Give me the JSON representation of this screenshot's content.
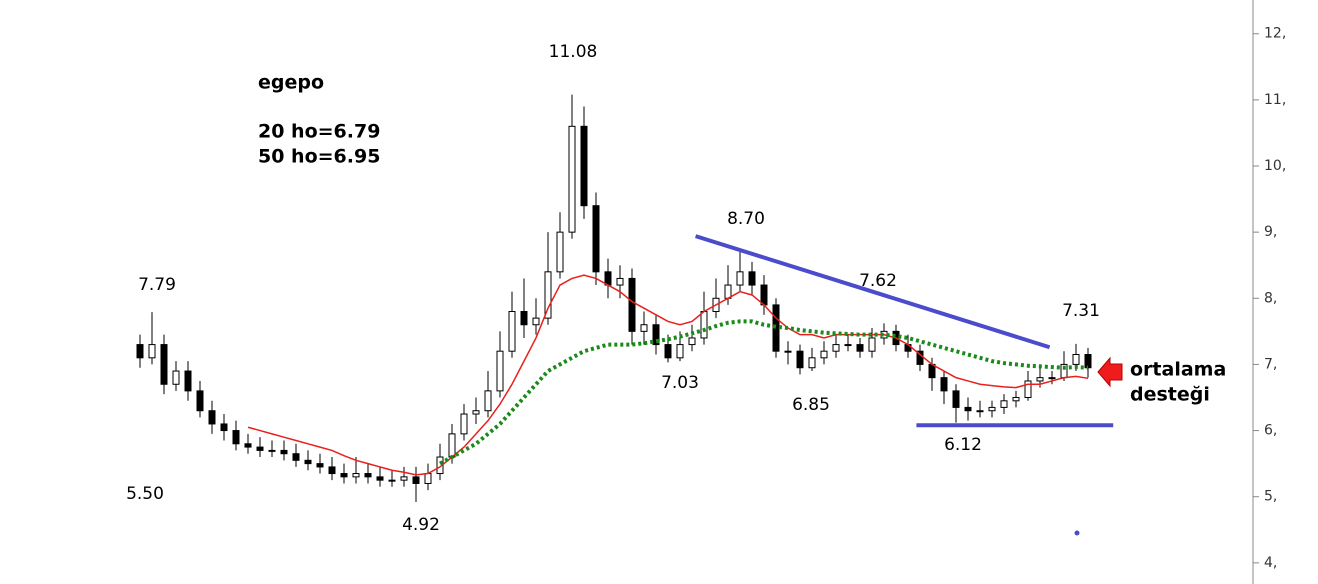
{
  "chart_data": {
    "type": "candlestick",
    "title": "egepo",
    "info_lines": [
      "20 ho=6.79",
      "50 ho=6.95"
    ],
    "annotations": [
      "7.79",
      "5.50",
      "11.08",
      "4.92",
      "8.70",
      "7.62",
      "7.03",
      "6.85",
      "6.12",
      "7.31"
    ],
    "callout": [
      "ortalama",
      "desteği"
    ],
    "categories": [
      null,
      null,
      null,
      null,
      null,
      null,
      null,
      null,
      null,
      null,
      null,
      null,
      null,
      null,
      null,
      null,
      null,
      null,
      null,
      null,
      null,
      null,
      null,
      null,
      null,
      null,
      null,
      null,
      null,
      null,
      null,
      null,
      null,
      null,
      null,
      null,
      null,
      null,
      null,
      null,
      null,
      null,
      null,
      null,
      null,
      null,
      null,
      null,
      null,
      null,
      null,
      null,
      null,
      null,
      null,
      null,
      null,
      null,
      null,
      null,
      null,
      null,
      null,
      null,
      null,
      null,
      null,
      null,
      null,
      null,
      null,
      null,
      null,
      null,
      null,
      null,
      null,
      null,
      null,
      null
    ],
    "open": [
      7.3,
      7.1,
      7.3,
      6.7,
      6.9,
      6.6,
      6.3,
      6.1,
      6.0,
      5.8,
      5.75,
      5.7,
      5.7,
      5.65,
      5.55,
      5.5,
      5.45,
      5.35,
      5.3,
      5.35,
      5.3,
      5.25,
      5.25,
      5.3,
      5.2,
      5.35,
      5.6,
      5.95,
      6.25,
      6.3,
      6.6,
      7.2,
      7.8,
      7.6,
      7.7,
      8.4,
      9.0,
      10.6,
      9.4,
      8.4,
      8.2,
      8.3,
      7.5,
      7.6,
      7.3,
      7.1,
      7.3,
      7.4,
      7.8,
      8.0,
      8.2,
      8.4,
      8.2,
      7.9,
      7.2,
      7.2,
      6.95,
      7.1,
      7.2,
      7.3,
      7.3,
      7.2,
      7.4,
      7.5,
      7.3,
      7.2,
      7.0,
      6.8,
      6.6,
      6.35,
      6.3,
      6.3,
      6.35,
      6.45,
      6.5,
      6.75,
      6.8,
      6.8,
      7.0,
      7.15
    ],
    "high": [
      7.45,
      7.79,
      7.45,
      7.05,
      7.05,
      6.75,
      6.45,
      6.25,
      6.15,
      5.95,
      5.9,
      5.85,
      5.85,
      5.8,
      5.7,
      5.65,
      5.6,
      5.5,
      5.6,
      5.5,
      5.45,
      5.4,
      5.45,
      5.45,
      5.5,
      5.8,
      6.1,
      6.4,
      6.5,
      6.9,
      7.5,
      8.1,
      8.3,
      8.0,
      9.0,
      9.3,
      11.08,
      10.9,
      9.6,
      8.6,
      8.5,
      8.45,
      7.8,
      7.75,
      7.45,
      7.5,
      7.6,
      8.1,
      8.3,
      8.5,
      8.7,
      8.55,
      8.35,
      8.0,
      7.35,
      7.3,
      7.25,
      7.35,
      7.45,
      7.45,
      7.4,
      7.55,
      7.62,
      7.6,
      7.45,
      7.3,
      7.1,
      6.9,
      6.7,
      6.5,
      6.45,
      6.45,
      6.55,
      6.6,
      6.9,
      7.0,
      6.9,
      7.2,
      7.31,
      7.25
    ],
    "low": [
      6.95,
      7.0,
      6.55,
      6.6,
      6.45,
      6.2,
      5.95,
      5.85,
      5.7,
      5.65,
      5.6,
      5.6,
      5.55,
      5.45,
      5.4,
      5.35,
      5.25,
      5.2,
      5.2,
      5.2,
      5.15,
      5.15,
      5.15,
      4.92,
      5.1,
      5.25,
      5.5,
      5.85,
      6.1,
      6.2,
      6.5,
      7.1,
      7.4,
      7.45,
      7.6,
      8.3,
      8.9,
      9.2,
      8.2,
      8.0,
      8.0,
      7.3,
      7.3,
      7.15,
      7.03,
      7.05,
      7.2,
      7.3,
      7.7,
      7.9,
      8.1,
      8.05,
      7.75,
      7.1,
      7.0,
      6.85,
      6.9,
      7.0,
      7.1,
      7.2,
      7.1,
      7.1,
      7.3,
      7.2,
      7.1,
      6.9,
      6.6,
      6.4,
      6.12,
      6.15,
      6.2,
      6.2,
      6.25,
      6.35,
      6.45,
      6.65,
      6.7,
      6.75,
      6.9,
      6.8
    ],
    "close": [
      7.1,
      7.3,
      6.7,
      6.9,
      6.6,
      6.3,
      6.1,
      6.0,
      5.8,
      5.75,
      5.7,
      5.7,
      5.65,
      5.55,
      5.5,
      5.45,
      5.35,
      5.3,
      5.35,
      5.3,
      5.25,
      5.25,
      5.3,
      5.2,
      5.35,
      5.6,
      5.95,
      6.25,
      6.3,
      6.6,
      7.2,
      7.8,
      7.6,
      7.7,
      8.4,
      9.0,
      10.6,
      9.4,
      8.4,
      8.2,
      8.3,
      7.5,
      7.6,
      7.3,
      7.1,
      7.3,
      7.4,
      7.8,
      8.0,
      8.2,
      8.4,
      8.2,
      7.9,
      7.2,
      7.2,
      6.95,
      7.1,
      7.2,
      7.3,
      7.3,
      7.2,
      7.4,
      7.5,
      7.3,
      7.2,
      7.0,
      6.8,
      6.6,
      6.35,
      6.3,
      6.3,
      6.35,
      6.45,
      6.5,
      6.75,
      6.8,
      6.8,
      7.0,
      7.15,
      6.95
    ],
    "up_color": "#ffffff",
    "down_color": "#000000",
    "series": [
      {
        "color": "#e8201c",
        "dashed": false,
        "values": [
          null,
          null,
          null,
          null,
          null,
          null,
          null,
          null,
          null,
          6.05,
          6.0,
          5.95,
          5.9,
          5.85,
          5.8,
          5.75,
          5.7,
          5.62,
          5.55,
          5.5,
          5.45,
          5.4,
          5.37,
          5.33,
          5.35,
          5.45,
          5.6,
          5.75,
          5.95,
          6.15,
          6.4,
          6.7,
          7.05,
          7.4,
          7.85,
          8.2,
          8.3,
          8.35,
          8.3,
          8.2,
          8.1,
          7.95,
          7.85,
          7.75,
          7.65,
          7.6,
          7.65,
          7.8,
          7.9,
          8.0,
          8.1,
          8.05,
          7.9,
          7.7,
          7.55,
          7.45,
          7.45,
          7.4,
          7.45,
          7.45,
          7.45,
          7.45,
          7.45,
          7.4,
          7.3,
          7.15,
          7.0,
          6.9,
          6.8,
          6.75,
          6.7,
          6.68,
          6.66,
          6.65,
          6.7,
          6.7,
          6.75,
          6.8,
          6.82,
          6.79
        ]
      },
      {
        "color": "#1a8a1a",
        "dashed": true,
        "values": [
          null,
          null,
          null,
          null,
          null,
          null,
          null,
          null,
          null,
          null,
          null,
          null,
          null,
          null,
          null,
          null,
          null,
          null,
          null,
          null,
          null,
          null,
          null,
          null,
          null,
          5.5,
          5.6,
          5.7,
          5.8,
          5.95,
          6.1,
          6.3,
          6.5,
          6.7,
          6.9,
          7.0,
          7.1,
          7.2,
          7.25,
          7.3,
          7.3,
          7.3,
          7.32,
          7.35,
          7.38,
          7.42,
          7.47,
          7.52,
          7.58,
          7.63,
          7.65,
          7.65,
          7.6,
          7.57,
          7.55,
          7.52,
          7.5,
          7.48,
          7.47,
          7.46,
          7.45,
          7.45,
          7.45,
          7.43,
          7.4,
          7.35,
          7.3,
          7.25,
          7.2,
          7.15,
          7.1,
          7.05,
          7.02,
          7.0,
          6.98,
          6.97,
          6.96,
          6.95,
          6.96,
          6.95
        ]
      }
    ],
    "trendlines": [
      {
        "color": "#4a4ccc",
        "x": [
          46.3,
          75.8
        ],
        "values": [
          8.94,
          7.26
        ]
      },
      {
        "color": "#4a4ccc",
        "x": [
          64.7,
          81.1
        ],
        "values": [
          6.08,
          6.08
        ]
      }
    ],
    "ylim": [
      3.68,
      12.51
    ],
    "yticks": [
      {
        "value": 4,
        "label": "4,"
      },
      {
        "value": 5,
        "label": "5,"
      },
      {
        "value": 6,
        "label": "6,"
      },
      {
        "value": 7,
        "label": "7,"
      },
      {
        "value": 8,
        "label": "8,"
      },
      {
        "value": 9,
        "label": "9,"
      },
      {
        "value": 10,
        "label": "10,"
      },
      {
        "value": 11,
        "label": "11,"
      },
      {
        "value": 12,
        "label": "12,"
      }
    ]
  }
}
